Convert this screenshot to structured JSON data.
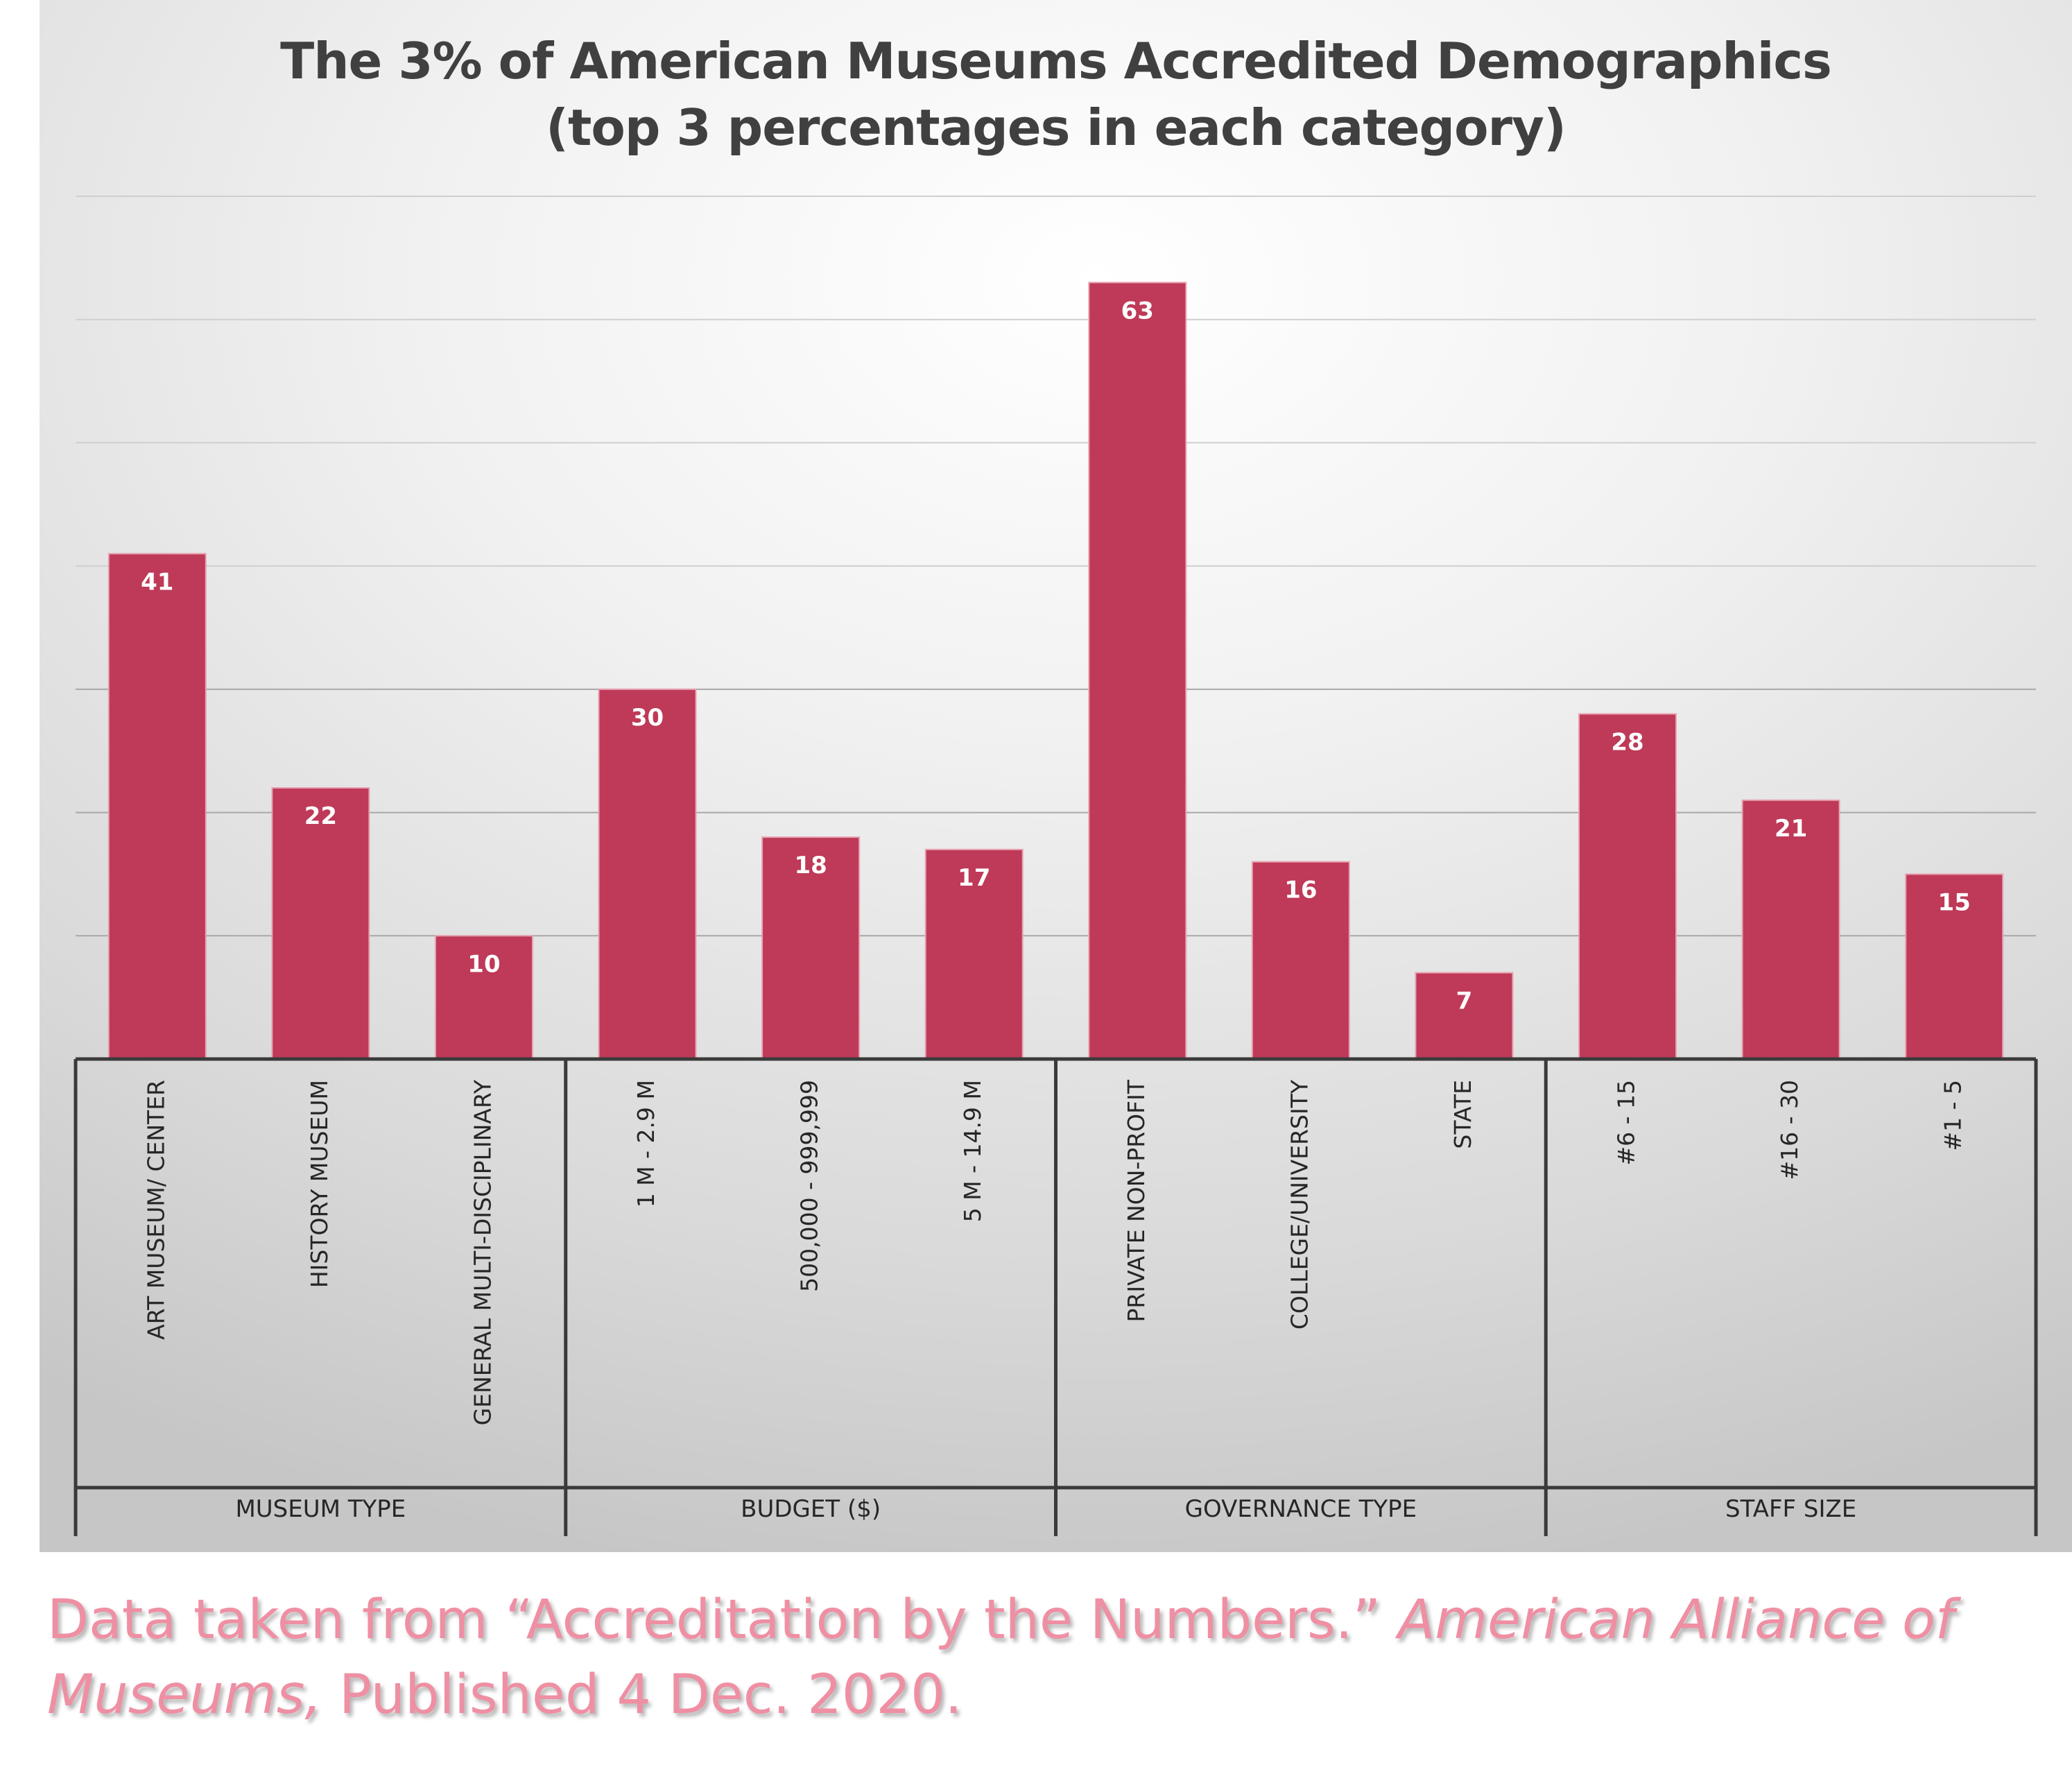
{
  "chart_data": {
    "type": "bar",
    "title_line1": "The 3% of American Museums Accredited Demographics",
    "title_line2": "(top 3 percentages in each category)",
    "categories": [
      "ART MUSEUM/ CENTER",
      "HISTORY MUSEUM",
      "GENERAL MULTI-DISCIPLINARY",
      "1 M - 2.9 M",
      "500,000 - 999,999",
      "5 M - 14.9 M",
      "PRIVATE NON-PROFIT",
      "COLLEGE/UNIVERSITY",
      "STATE",
      "#6 - 15",
      "#16 - 30",
      "#1 - 5"
    ],
    "values": [
      41,
      22,
      10,
      30,
      18,
      17,
      63,
      16,
      7,
      28,
      21,
      15
    ],
    "groups": [
      {
        "label": "MUSEUM TYPE",
        "count": 3
      },
      {
        "label": "BUDGET ($)",
        "count": 3
      },
      {
        "label": "GOVERNANCE TYPE",
        "count": 3
      },
      {
        "label": "STAFF SIZE",
        "count": 3
      }
    ],
    "ylim": [
      0,
      70
    ],
    "grid_step": 10,
    "grid": true,
    "data_labels": true,
    "bar_color": "#be3a58"
  },
  "source": {
    "part1": "Data taken from “Accreditation by the Numbers.” ",
    "journal_part1": "American Alliance of",
    "journal_part2": "Museums,",
    "part2": " Published 4 Dec. 2020."
  },
  "colors": {
    "source_text": "#ef8fa3",
    "title_text": "#404040"
  }
}
